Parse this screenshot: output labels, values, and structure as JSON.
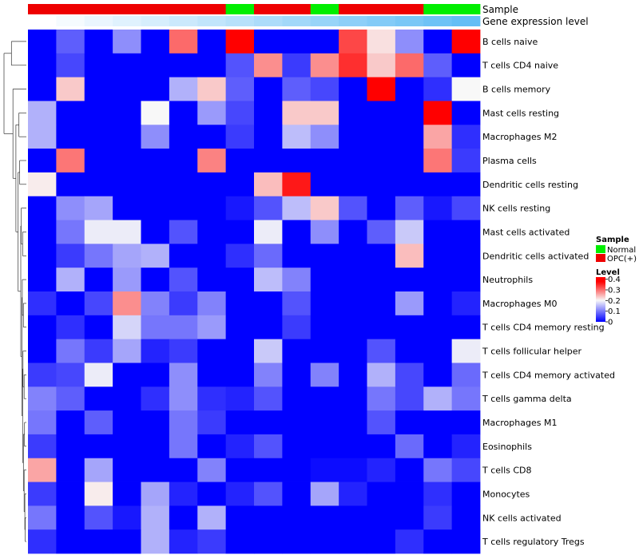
{
  "chart_data": {
    "type": "heatmap",
    "annotations": {
      "sample_title": "Sample",
      "expr_title": "Gene expression level",
      "sample_groups": [
        "OPC(+)",
        "OPC(+)",
        "OPC(+)",
        "OPC(+)",
        "OPC(+)",
        "OPC(+)",
        "OPC(+)",
        "Normal",
        "OPC(+)",
        "OPC(+)",
        "Normal",
        "OPC(+)",
        "OPC(+)",
        "OPC(+)",
        "Normal",
        "Normal"
      ],
      "expression_level": [
        0.0,
        0.05,
        0.1,
        0.15,
        0.2,
        0.25,
        0.3,
        0.35,
        0.4,
        0.45,
        0.5,
        0.55,
        0.6,
        0.65,
        0.7,
        0.75
      ]
    },
    "rows": [
      "B cells naive",
      "T cells CD4 naive",
      "B cells memory",
      "Mast cells resting",
      "Macrophages M2",
      "Plasma cells",
      "Dendritic cells resting",
      "NK cells resting",
      "Mast cells activated",
      "Dendritic cells activated",
      "Neutrophils",
      "Macrophages M0",
      "T cells CD4 memory resting",
      "T cells follicular helper",
      "T cells CD4 memory activated",
      "T cells gamma delta",
      "Macrophages M1",
      "Eosinophils",
      "T cells CD8",
      "Monocytes",
      "NK cells activated",
      "T cells regulatory  Tregs"
    ],
    "values": [
      [
        0,
        0.08,
        0,
        0.12,
        0,
        0.33,
        0,
        0.42,
        0,
        0,
        0,
        0.36,
        0.23,
        0.12,
        0,
        0.42
      ],
      [
        0,
        0.06,
        0,
        0,
        0,
        0,
        0,
        0.07,
        0.3,
        0.05,
        0.3,
        0.38,
        0.25,
        0.33,
        0.08,
        0
      ],
      [
        0,
        0.25,
        0,
        0,
        0,
        0.15,
        0.25,
        0.08,
        0,
        0.08,
        0.06,
        0,
        0.42,
        0,
        0.04,
        0.21
      ],
      [
        0.15,
        0,
        0,
        0,
        0.21,
        0,
        0.13,
        0.06,
        0,
        0.25,
        0.25,
        0,
        0,
        0,
        0.42,
        0
      ],
      [
        0.15,
        0,
        0,
        0,
        0.12,
        0,
        0,
        0.05,
        0,
        0.16,
        0.12,
        0,
        0,
        0,
        0.28,
        0.04
      ],
      [
        0,
        0.32,
        0,
        0,
        0,
        0,
        0.31,
        0,
        0,
        0,
        0,
        0,
        0,
        0,
        0.32,
        0.05
      ],
      [
        0.22,
        0,
        0,
        0,
        0,
        0,
        0,
        0,
        0.26,
        0.4,
        0,
        0,
        0,
        0,
        0,
        0
      ],
      [
        0,
        0.12,
        0.14,
        0,
        0,
        0,
        0,
        0.02,
        0.07,
        0.16,
        0.25,
        0.07,
        0,
        0.08,
        0.02,
        0.06
      ],
      [
        0,
        0.1,
        0.2,
        0.2,
        0,
        0.07,
        0,
        0,
        0.2,
        0,
        0.12,
        0,
        0.08,
        0.17,
        0,
        0
      ],
      [
        0,
        0.05,
        0.1,
        0.14,
        0.15,
        0,
        0,
        0.04,
        0.09,
        0,
        0,
        0,
        0,
        0.26,
        0,
        0
      ],
      [
        0,
        0.15,
        0,
        0.13,
        0,
        0.07,
        0,
        0,
        0.16,
        0.11,
        0,
        0,
        0,
        0,
        0,
        0
      ],
      [
        0.04,
        0,
        0.06,
        0.3,
        0.11,
        0.05,
        0.11,
        0,
        0,
        0.07,
        0,
        0,
        0,
        0.13,
        0,
        0.03
      ],
      [
        0,
        0.04,
        0,
        0.18,
        0.1,
        0.1,
        0.13,
        0,
        0,
        0.05,
        0,
        0,
        0,
        0,
        0,
        0
      ],
      [
        0,
        0.1,
        0.05,
        0.14,
        0.03,
        0.05,
        0,
        0,
        0.17,
        0,
        0,
        0,
        0.07,
        0,
        0,
        0.2
      ],
      [
        0.05,
        0.06,
        0.2,
        0,
        0,
        0.12,
        0,
        0,
        0.11,
        0,
        0.11,
        0,
        0.15,
        0.06,
        0,
        0.09
      ],
      [
        0.11,
        0.08,
        0,
        0,
        0.04,
        0.12,
        0.04,
        0.03,
        0.07,
        0,
        0,
        0,
        0.1,
        0.06,
        0.15,
        0.1
      ],
      [
        0.1,
        0,
        0.08,
        0,
        0,
        0.1,
        0.05,
        0,
        0,
        0,
        0,
        0,
        0.07,
        0,
        0,
        0
      ],
      [
        0.05,
        0,
        0,
        0,
        0,
        0.1,
        0,
        0.03,
        0.07,
        0,
        0,
        0,
        0,
        0.09,
        0,
        0.03
      ],
      [
        0.28,
        0,
        0.14,
        0,
        0,
        0,
        0.11,
        0,
        0,
        0,
        0.01,
        0.01,
        0.03,
        0,
        0.1,
        0.06
      ],
      [
        0.05,
        0,
        0.22,
        0,
        0.14,
        0.03,
        0,
        0.03,
        0.07,
        0,
        0.14,
        0.03,
        0,
        0,
        0.04,
        0
      ],
      [
        0.1,
        0,
        0.07,
        0.02,
        0.15,
        0,
        0.15,
        0,
        0,
        0,
        0,
        0,
        0,
        0,
        0.05,
        0
      ],
      [
        0.04,
        0,
        0,
        0,
        0.15,
        0.03,
        0.05,
        0,
        0,
        0,
        0,
        0,
        0,
        0.04,
        0,
        0
      ]
    ],
    "legend": {
      "sample_title": "Sample",
      "sample_items": [
        {
          "label": "Normal",
          "color": "#00ee00"
        },
        {
          "label": "OPC(+)",
          "color": "#ee0000"
        }
      ],
      "level_title": "Level",
      "level_ticks": [
        "0.4",
        "0.3",
        "0.2",
        "0.1",
        "0"
      ]
    },
    "color_scale": {
      "low": "#0000ff",
      "mid": "#f8f8f8",
      "high": "#ff0000",
      "min": 0,
      "max": 0.42
    }
  }
}
